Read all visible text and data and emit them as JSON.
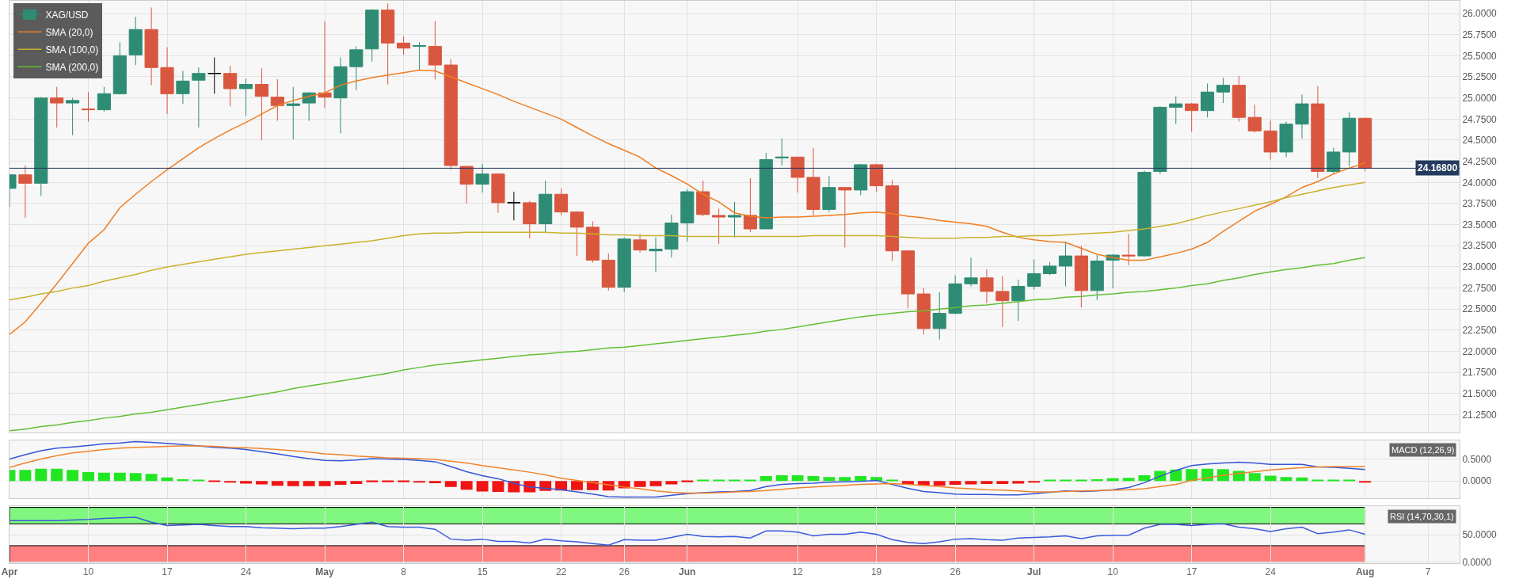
{
  "chart_data": [
    {
      "type": "candlestick",
      "categories": [
        null,
        null,
        null,
        null,
        null,
        null,
        null,
        null,
        null,
        null,
        null,
        null,
        null,
        null,
        null,
        null,
        null,
        null,
        null,
        null,
        null,
        null,
        null,
        null,
        null,
        null,
        null,
        null,
        null,
        null,
        null,
        null,
        null,
        null,
        null,
        null,
        null,
        null,
        null,
        null,
        null,
        null,
        null,
        null,
        null,
        null,
        null,
        null,
        null,
        null,
        null,
        null,
        null,
        null,
        null,
        null,
        null,
        null,
        null,
        null,
        null,
        null,
        null,
        null,
        null,
        null,
        null,
        null,
        null,
        null,
        null,
        null,
        null,
        null,
        null,
        null,
        null,
        null,
        null,
        null,
        null,
        null,
        null,
        null,
        null,
        null,
        null,
        null,
        null,
        null,
        null,
        null,
        null
      ],
      "ylim": [
        21.04,
        26.15
      ],
      "yticks": [
        {
          "value": 21.25,
          "label": "21.2500"
        },
        {
          "value": 21.5,
          "label": "21.5000"
        },
        {
          "value": 21.75,
          "label": "21.7500"
        },
        {
          "value": 22,
          "label": "22.0000"
        },
        {
          "value": 22.25,
          "label": "22.2500"
        },
        {
          "value": 22.5,
          "label": "22.5000"
        },
        {
          "value": 22.75,
          "label": "22.7500"
        },
        {
          "value": 23,
          "label": "23.0000"
        },
        {
          "value": 23.25,
          "label": "23.2500"
        },
        {
          "value": 23.5,
          "label": "23.5000"
        },
        {
          "value": 23.75,
          "label": "23.7500"
        },
        {
          "value": 24,
          "label": "24.0000"
        },
        {
          "value": 24.25,
          "label": "24.2500"
        },
        {
          "value": 24.5,
          "label": "24.5000"
        },
        {
          "value": 24.75,
          "label": "24.7500"
        },
        {
          "value": 25,
          "label": "25.0000"
        },
        {
          "value": 25.25,
          "label": "25.2500"
        },
        {
          "value": 25.5,
          "label": "25.5000"
        },
        {
          "value": 25.75,
          "label": "25.7500"
        },
        {
          "value": 26,
          "label": "26.0000"
        }
      ],
      "grid": true,
      "legend": "top left",
      "series": [
        {
          "name": "XAG/USD",
          "type": "candlestick",
          "ohlc": [
            [
              23.93,
              24.1,
              23.71,
              24.09
            ],
            [
              24.09,
              24.2,
              23.58,
              23.99
            ],
            [
              23.99,
              25.01,
              23.84,
              25.0
            ],
            [
              25.0,
              25.13,
              24.65,
              24.94
            ],
            [
              24.94,
              25.0,
              24.56,
              24.97
            ],
            [
              24.87,
              25.07,
              24.72,
              24.86
            ],
            [
              24.86,
              25.13,
              24.84,
              25.05
            ],
            [
              25.05,
              25.66,
              25.04,
              25.5
            ],
            [
              25.51,
              25.96,
              25.39,
              25.81
            ],
            [
              25.81,
              26.07,
              25.15,
              25.36
            ],
            [
              25.36,
              25.6,
              24.81,
              25.05
            ],
            [
              25.05,
              25.32,
              24.93,
              25.2
            ],
            [
              25.21,
              25.36,
              24.65,
              25.29
            ],
            [
              25.29,
              25.48,
              25.05,
              25.29
            ],
            [
              25.29,
              25.38,
              24.9,
              25.11
            ],
            [
              25.11,
              25.23,
              24.79,
              25.16
            ],
            [
              25.16,
              25.35,
              24.5,
              25.02
            ],
            [
              25.01,
              25.22,
              24.73,
              24.91
            ],
            [
              24.91,
              25.13,
              24.51,
              24.93
            ],
            [
              24.94,
              25.07,
              24.73,
              25.06
            ],
            [
              25.06,
              25.91,
              24.88,
              25.01
            ],
            [
              25.0,
              25.48,
              24.58,
              25.37
            ],
            [
              25.37,
              25.61,
              25.09,
              25.57
            ],
            [
              25.58,
              26.05,
              25.43,
              26.04
            ],
            [
              26.04,
              26.12,
              25.16,
              25.65
            ],
            [
              25.65,
              25.73,
              25.51,
              25.59
            ],
            [
              25.61,
              25.66,
              25.33,
              25.62
            ],
            [
              25.61,
              25.91,
              25.22,
              25.39
            ],
            [
              25.39,
              25.46,
              24.15,
              24.2
            ],
            [
              24.19,
              24.2,
              23.75,
              23.98
            ],
            [
              23.98,
              24.22,
              23.88,
              24.1
            ],
            [
              24.1,
              24.11,
              23.64,
              23.76
            ],
            [
              23.76,
              23.89,
              23.55,
              23.76
            ],
            [
              23.76,
              23.78,
              23.34,
              23.51
            ],
            [
              23.51,
              24.02,
              23.41,
              23.86
            ],
            [
              23.86,
              23.93,
              23.61,
              23.65
            ],
            [
              23.65,
              23.66,
              23.13,
              23.47
            ],
            [
              23.47,
              23.54,
              23.05,
              23.08
            ],
            [
              23.08,
              23.16,
              22.72,
              22.76
            ],
            [
              22.76,
              23.35,
              22.7,
              23.33
            ],
            [
              23.32,
              23.39,
              23.17,
              23.2
            ],
            [
              23.19,
              23.35,
              22.94,
              23.21
            ],
            [
              23.21,
              23.62,
              23.11,
              23.52
            ],
            [
              23.52,
              23.92,
              23.3,
              23.89
            ],
            [
              23.89,
              24.02,
              23.6,
              23.62
            ],
            [
              23.61,
              23.69,
              23.27,
              23.59
            ],
            [
              23.59,
              23.77,
              23.35,
              23.61
            ],
            [
              23.61,
              24.05,
              23.41,
              23.45
            ],
            [
              23.45,
              24.35,
              23.45,
              24.27
            ],
            [
              24.29,
              24.52,
              24.2,
              24.3
            ],
            [
              24.3,
              24.3,
              23.88,
              24.06
            ],
            [
              24.06,
              24.41,
              23.61,
              23.68
            ],
            [
              23.68,
              24.08,
              23.65,
              23.94
            ],
            [
              23.94,
              23.94,
              23.23,
              23.91
            ],
            [
              23.91,
              24.22,
              23.85,
              24.21
            ],
            [
              24.21,
              24.22,
              23.89,
              23.96
            ],
            [
              23.96,
              24.03,
              23.07,
              23.19
            ],
            [
              23.19,
              23.19,
              22.51,
              22.68
            ],
            [
              22.68,
              22.75,
              22.2,
              22.27
            ],
            [
              22.27,
              22.7,
              22.14,
              22.45
            ],
            [
              22.45,
              22.9,
              22.44,
              22.8
            ],
            [
              22.8,
              23.11,
              22.77,
              22.87
            ],
            [
              22.87,
              22.97,
              22.57,
              22.71
            ],
            [
              22.71,
              22.89,
              22.29,
              22.6
            ],
            [
              22.6,
              22.85,
              22.36,
              22.77
            ],
            [
              22.77,
              23.09,
              22.73,
              22.92
            ],
            [
              22.92,
              23.06,
              22.9,
              23.01
            ],
            [
              23.01,
              23.3,
              22.77,
              23.13
            ],
            [
              23.13,
              23.25,
              22.52,
              22.72
            ],
            [
              22.72,
              23.14,
              22.61,
              23.07
            ],
            [
              23.08,
              23.15,
              22.75,
              23.14
            ],
            [
              23.14,
              23.39,
              23.02,
              23.13
            ],
            [
              23.13,
              24.14,
              23.12,
              24.12
            ],
            [
              24.13,
              24.9,
              24.1,
              24.89
            ],
            [
              24.89,
              25.02,
              24.69,
              24.93
            ],
            [
              24.93,
              24.94,
              24.6,
              24.85
            ],
            [
              24.85,
              25.17,
              24.77,
              25.07
            ],
            [
              25.07,
              25.24,
              24.94,
              25.15
            ],
            [
              25.15,
              25.26,
              24.72,
              24.77
            ],
            [
              24.77,
              24.92,
              24.59,
              24.61
            ],
            [
              24.61,
              24.73,
              24.27,
              24.36
            ],
            [
              24.36,
              24.72,
              24.3,
              24.69
            ],
            [
              24.69,
              25.04,
              24.52,
              24.93
            ],
            [
              24.93,
              25.14,
              24.05,
              24.13
            ],
            [
              24.13,
              24.41,
              24.1,
              24.36
            ],
            [
              24.36,
              24.83,
              24.19,
              24.76
            ],
            [
              24.76,
              24.76,
              24.13,
              24.168
            ],
            null,
            null,
            null,
            null,
            null,
            null
          ],
          "colors": [
            "#2f8c74",
            "#d9573f",
            "#2f8c74",
            "#d9573f",
            "#2f8c74",
            "#d9573f",
            "#2f8c74",
            "#2f8c74",
            "#2f8c74",
            "#d9573f",
            "#d9573f",
            "#2f8c74",
            "#2f8c74",
            "#000000",
            "#d9573f",
            "#2f8c74",
            "#d9573f",
            "#d9573f",
            "#2f8c74",
            "#2f8c74",
            "#d9573f",
            "#2f8c74",
            "#2f8c74",
            "#2f8c74",
            "#d9573f",
            "#d9573f",
            "#2f8c74",
            "#d9573f",
            "#d9573f",
            "#d9573f",
            "#2f8c74",
            "#d9573f",
            "#000000",
            "#d9573f",
            "#2f8c74",
            "#d9573f",
            "#d9573f",
            "#d9573f",
            "#d9573f",
            "#2f8c74",
            "#d9573f",
            "#2f8c74",
            "#2f8c74",
            "#2f8c74",
            "#d9573f",
            "#d9573f",
            "#2f8c74",
            "#d9573f",
            "#2f8c74",
            "#2f8c74",
            "#d9573f",
            "#d9573f",
            "#2f8c74",
            "#d9573f",
            "#2f8c74",
            "#d9573f",
            "#d9573f",
            "#d9573f",
            "#d9573f",
            "#2f8c74",
            "#2f8c74",
            "#2f8c74",
            "#d9573f",
            "#d9573f",
            "#2f8c74",
            "#2f8c74",
            "#2f8c74",
            "#2f8c74",
            "#d9573f",
            "#2f8c74",
            "#2f8c74",
            "#d9573f",
            "#2f8c74",
            "#2f8c74",
            "#2f8c74",
            "#d9573f",
            "#2f8c74",
            "#2f8c74",
            "#d9573f",
            "#d9573f",
            "#d9573f",
            "#2f8c74",
            "#2f8c74",
            "#d9573f",
            "#2f8c74",
            "#2f8c74",
            "#d9573f",
            null,
            null,
            null,
            null,
            null,
            null
          ]
        },
        {
          "name": "SMA (20,0)",
          "type": "line",
          "color": "#f07d22",
          "values": [
            22.2,
            22.35,
            22.57,
            22.8,
            23.04,
            23.28,
            23.44,
            23.7,
            23.86,
            24.01,
            24.15,
            24.28,
            24.41,
            24.52,
            24.62,
            24.71,
            24.81,
            24.91,
            24.97,
            25.02,
            25.06,
            25.15,
            25.2,
            25.24,
            25.27,
            25.3,
            25.33,
            25.32,
            25.25,
            25.18,
            25.11,
            25.04,
            24.96,
            24.89,
            24.82,
            24.75,
            24.65,
            24.55,
            24.46,
            24.38,
            24.3,
            24.17,
            24.08,
            23.98,
            23.86,
            23.77,
            23.64,
            23.6,
            23.58,
            23.59,
            23.59,
            23.6,
            23.61,
            23.62,
            23.64,
            23.65,
            23.63,
            23.6,
            23.58,
            23.55,
            23.53,
            23.51,
            23.48,
            23.41,
            23.35,
            23.32,
            23.3,
            23.29,
            23.22,
            23.15,
            23.11,
            23.08,
            23.08,
            23.12,
            23.16,
            23.21,
            23.29,
            23.42,
            23.54,
            23.66,
            23.74,
            23.83,
            23.94,
            24.01,
            24.1,
            24.17,
            24.23,
            null,
            null,
            null,
            null,
            null,
            null
          ]
        },
        {
          "name": "SMA (100,0)",
          "type": "line",
          "color": "#c9b22c",
          "values": [
            22.61,
            22.64,
            22.68,
            22.71,
            22.75,
            22.78,
            22.83,
            22.87,
            22.91,
            22.96,
            23.0,
            23.03,
            23.06,
            23.09,
            23.12,
            23.15,
            23.17,
            23.19,
            23.21,
            23.23,
            23.25,
            23.27,
            23.29,
            23.31,
            23.34,
            23.37,
            23.39,
            23.4,
            23.4,
            23.41,
            23.41,
            23.41,
            23.41,
            23.41,
            23.41,
            23.4,
            23.4,
            23.39,
            23.38,
            23.38,
            23.37,
            23.37,
            23.37,
            23.36,
            23.36,
            23.36,
            23.36,
            23.36,
            23.36,
            23.36,
            23.36,
            23.37,
            23.37,
            23.37,
            23.37,
            23.37,
            23.36,
            23.35,
            23.34,
            23.34,
            23.34,
            23.35,
            23.35,
            23.36,
            23.36,
            23.37,
            23.37,
            23.38,
            23.39,
            23.4,
            23.41,
            23.43,
            23.45,
            23.48,
            23.51,
            23.56,
            23.61,
            23.65,
            23.69,
            23.73,
            23.77,
            23.82,
            23.86,
            23.9,
            23.94,
            23.97,
            24.0,
            null,
            null,
            null,
            null,
            null,
            null
          ]
        },
        {
          "name": "SMA (200,0)",
          "type": "line",
          "color": "#62bf34",
          "values": [
            21.06,
            21.08,
            21.11,
            21.13,
            21.16,
            21.18,
            21.21,
            21.23,
            21.26,
            21.28,
            21.31,
            21.34,
            21.37,
            21.4,
            21.43,
            21.46,
            21.49,
            21.52,
            21.56,
            21.59,
            21.62,
            21.65,
            21.68,
            21.71,
            21.74,
            21.78,
            21.81,
            21.84,
            21.86,
            21.88,
            21.9,
            21.92,
            21.94,
            21.96,
            21.97,
            21.99,
            22.0,
            22.02,
            22.04,
            22.05,
            22.07,
            22.09,
            22.11,
            22.13,
            22.15,
            22.17,
            22.19,
            22.21,
            22.24,
            22.26,
            22.29,
            22.32,
            22.35,
            22.38,
            22.41,
            22.43,
            22.45,
            22.47,
            22.48,
            22.5,
            22.52,
            22.54,
            22.55,
            22.57,
            22.59,
            22.61,
            22.62,
            22.64,
            22.65,
            22.67,
            22.68,
            22.7,
            22.71,
            22.73,
            22.75,
            22.78,
            22.8,
            22.84,
            22.87,
            22.91,
            22.94,
            22.97,
            22.99,
            23.02,
            23.04,
            23.08,
            23.11,
            null,
            null,
            null,
            null,
            null,
            null
          ]
        }
      ],
      "ref_lines": [
        {
          "axis": "y",
          "value": 24.168,
          "label": "24.16800",
          "color": "#243a5e"
        }
      ]
    },
    {
      "type": "line",
      "title": "MACD (12,26,9)",
      "categories": [
        null,
        null,
        null,
        null,
        null,
        null,
        null,
        null,
        null,
        null,
        null,
        null,
        null,
        null,
        null,
        null,
        null,
        null,
        null,
        null,
        null,
        null,
        null,
        null,
        null,
        null,
        null,
        null,
        null,
        null,
        null,
        null,
        null,
        null,
        null,
        null,
        null,
        null,
        null,
        null,
        null,
        null,
        null,
        null,
        null,
        null,
        null,
        null,
        null,
        null,
        null,
        null,
        null,
        null,
        null,
        null,
        null,
        null,
        null,
        null,
        null,
        null,
        null,
        null,
        null,
        null,
        null,
        null,
        null,
        null,
        null,
        null,
        null,
        null,
        null,
        null,
        null,
        null,
        null,
        null,
        null,
        null,
        null,
        null,
        null,
        null,
        null,
        null,
        null,
        null,
        null,
        null,
        null
      ],
      "ylim": [
        -0.4,
        0.935
      ],
      "yticks": [
        {
          "value": 0,
          "label": "0.0000"
        },
        {
          "value": 0.5,
          "label": "0.5000"
        }
      ],
      "grid": true,
      "series": [
        {
          "type": "bar",
          "color": "#22e622",
          "values": [
            0.25,
            0.25,
            0.28,
            0.28,
            0.25,
            0.2,
            0.19,
            0.19,
            0.18,
            0.16,
            0.08,
            0.04,
            0.02,
            null,
            null,
            null,
            null,
            null,
            null,
            null,
            null,
            null,
            null,
            null,
            null,
            null,
            null,
            null,
            null,
            null,
            null,
            null,
            null,
            null,
            null,
            null,
            null,
            null,
            null,
            null,
            null,
            null,
            null,
            null,
            0.02,
            0.02,
            0.02,
            0.03,
            0.11,
            0.13,
            0.13,
            0.11,
            0.09,
            0.09,
            0.11,
            0.09,
            0.02,
            null,
            null,
            null,
            null,
            null,
            null,
            null,
            null,
            null,
            0.02,
            0.02,
            0.02,
            0.04,
            0.06,
            0.07,
            0.13,
            0.23,
            0.26,
            0.27,
            0.28,
            0.27,
            0.23,
            0.18,
            0.12,
            0.09,
            0.08,
            0.02,
            0.02,
            0.02,
            null,
            null,
            null,
            null,
            null,
            null,
            null
          ]
        },
        {
          "type": "bar",
          "color": "#f01414",
          "values": [
            null,
            null,
            null,
            null,
            null,
            null,
            null,
            null,
            null,
            null,
            null,
            null,
            null,
            -0.02,
            -0.04,
            -0.06,
            -0.08,
            -0.11,
            -0.12,
            -0.12,
            -0.12,
            -0.09,
            -0.07,
            -0.03,
            -0.03,
            -0.03,
            -0.04,
            -0.05,
            -0.14,
            -0.2,
            -0.24,
            -0.25,
            -0.26,
            -0.26,
            -0.23,
            -0.22,
            -0.21,
            -0.21,
            -0.22,
            -0.17,
            -0.14,
            -0.12,
            -0.08,
            -0.03,
            null,
            null,
            null,
            null,
            null,
            null,
            null,
            null,
            null,
            null,
            null,
            null,
            null,
            -0.09,
            -0.11,
            -0.11,
            -0.09,
            -0.08,
            -0.07,
            -0.07,
            -0.06,
            -0.04,
            null,
            null,
            null,
            null,
            null,
            null,
            null,
            null,
            null,
            null,
            null,
            null,
            null,
            null,
            null,
            null,
            null,
            null,
            null,
            null,
            -0.04,
            null,
            null,
            null,
            null,
            null,
            null
          ]
        },
        {
          "type": "line",
          "color": "#3556d6",
          "values": [
            0.5,
            0.6,
            0.69,
            0.75,
            0.78,
            0.81,
            0.85,
            0.87,
            0.9,
            0.88,
            0.86,
            0.83,
            0.8,
            0.77,
            0.75,
            0.72,
            0.67,
            0.62,
            0.56,
            0.51,
            0.47,
            0.46,
            0.48,
            0.51,
            0.5,
            0.49,
            0.47,
            0.44,
            0.33,
            0.21,
            0.12,
            0.05,
            -0.05,
            -0.14,
            -0.17,
            -0.2,
            -0.25,
            -0.3,
            -0.36,
            -0.37,
            -0.37,
            -0.37,
            -0.33,
            -0.29,
            -0.27,
            -0.25,
            -0.24,
            -0.22,
            -0.13,
            -0.08,
            -0.06,
            -0.05,
            -0.03,
            -0.02,
            -0.01,
            0.01,
            -0.08,
            -0.17,
            -0.24,
            -0.27,
            -0.3,
            -0.31,
            -0.31,
            -0.32,
            -0.32,
            -0.29,
            -0.26,
            -0.23,
            -0.24,
            -0.23,
            -0.2,
            -0.15,
            -0.04,
            0.11,
            0.24,
            0.35,
            0.39,
            0.41,
            0.43,
            0.41,
            0.38,
            0.38,
            0.38,
            0.32,
            0.31,
            0.29,
            0.26,
            null,
            null,
            null,
            null,
            null,
            null
          ]
        },
        {
          "type": "line",
          "color": "#f0842c",
          "values": [
            0.31,
            0.41,
            0.5,
            0.58,
            0.64,
            0.68,
            0.72,
            0.75,
            0.77,
            0.78,
            0.79,
            0.8,
            0.8,
            0.79,
            0.77,
            0.76,
            0.74,
            0.72,
            0.69,
            0.66,
            0.62,
            0.6,
            0.57,
            0.55,
            0.53,
            0.52,
            0.51,
            0.49,
            0.45,
            0.41,
            0.35,
            0.3,
            0.25,
            0.2,
            0.14,
            0.06,
            0.01,
            -0.04,
            -0.09,
            -0.14,
            -0.18,
            -0.23,
            -0.26,
            -0.28,
            -0.28,
            -0.27,
            -0.25,
            -0.24,
            -0.22,
            -0.19,
            -0.16,
            -0.14,
            -0.12,
            -0.1,
            -0.08,
            -0.07,
            -0.06,
            -0.08,
            -0.1,
            -0.13,
            -0.16,
            -0.18,
            -0.2,
            -0.21,
            -0.23,
            -0.25,
            -0.25,
            -0.24,
            -0.23,
            -0.22,
            -0.21,
            -0.2,
            -0.18,
            -0.13,
            -0.08,
            0.01,
            0.07,
            0.13,
            0.17,
            0.21,
            0.25,
            0.28,
            0.3,
            0.32,
            0.33,
            0.33,
            0.33,
            null,
            null,
            null,
            null,
            null,
            null
          ]
        }
      ]
    },
    {
      "type": "line",
      "title": "RSI (14,70,30,1)",
      "categories": [
        "Apr",
        null,
        null,
        null,
        null,
        "10",
        null,
        null,
        null,
        null,
        "17",
        null,
        null,
        null,
        null,
        "24",
        null,
        null,
        null,
        null,
        "May",
        null,
        null,
        null,
        null,
        "8",
        null,
        null,
        null,
        null,
        "15",
        null,
        null,
        null,
        null,
        "22",
        null,
        null,
        null,
        "26",
        null,
        null,
        null,
        "Jun",
        null,
        null,
        null,
        null,
        null,
        null,
        "12",
        null,
        null,
        null,
        null,
        "19",
        null,
        null,
        null,
        null,
        "26",
        null,
        null,
        null,
        null,
        "Jul",
        null,
        null,
        null,
        null,
        "10",
        null,
        null,
        null,
        null,
        "17",
        null,
        null,
        null,
        null,
        "24",
        null,
        null,
        null,
        null,
        null,
        "Aug",
        null,
        null,
        null,
        "7",
        null,
        null
      ],
      "ylim": [
        -2,
        102
      ],
      "yticks": [
        {
          "value": 0,
          "label": "0.0000"
        },
        {
          "value": 50,
          "label": "50.0000"
        }
      ],
      "grid": true,
      "series": [
        {
          "color": "#3b5bdb",
          "values": [
            76,
            76,
            76,
            76,
            77,
            78,
            80,
            81,
            82,
            73,
            67,
            68,
            69,
            67,
            65,
            65,
            63,
            62,
            61,
            62,
            62,
            65,
            69,
            73,
            65,
            64,
            64,
            60,
            42,
            40,
            42,
            38,
            38,
            35,
            42,
            39,
            37,
            34,
            31,
            41,
            40,
            40,
            45,
            51,
            47,
            46,
            47,
            44,
            57,
            57,
            55,
            48,
            51,
            51,
            55,
            51,
            41,
            36,
            34,
            37,
            42,
            43,
            41,
            40,
            44,
            45,
            46,
            48,
            43,
            48,
            49,
            49,
            62,
            69,
            69,
            67,
            69,
            70,
            64,
            61,
            56,
            61,
            64,
            52,
            55,
            59,
            51,
            null,
            null,
            null,
            null,
            null,
            null
          ]
        }
      ],
      "bands": [
        {
          "axis": "y",
          "from": 70,
          "to": 100,
          "color": "#80f880"
        },
        {
          "axis": "y",
          "from": 0,
          "to": 30,
          "color": "#ff8080"
        }
      ]
    }
  ]
}
